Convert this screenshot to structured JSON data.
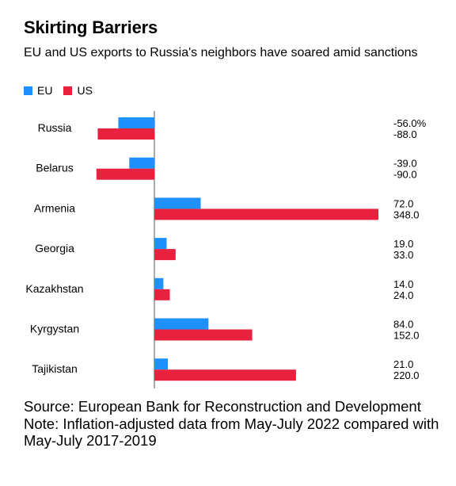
{
  "title": "Skirting Barriers",
  "subtitle": "EU and US exports to Russia's neighbors have soared amid sanctions",
  "source": "Source: European Bank for Reconstruction and Development",
  "note": "Note: Inflation-adjusted data from May-July 2022 compared with May-July 2017-2019",
  "colors": {
    "eu": "#1e90ff",
    "us": "#e8213e"
  },
  "chart_data": {
    "type": "bar",
    "orientation": "horizontal",
    "categories": [
      "Russia",
      "Belarus",
      "Armenia",
      "Georgia",
      "Kazakhstan",
      "Kyrgystan",
      "Tajikistan"
    ],
    "series": [
      {
        "name": "EU",
        "values": [
          -56.0,
          -39.0,
          72.0,
          19.0,
          14.0,
          84.0,
          21.0
        ],
        "labels": [
          "-56.0%",
          "-39.0",
          "72.0",
          "19.0",
          "14.0",
          "84.0",
          "21.0"
        ]
      },
      {
        "name": "US",
        "values": [
          -88.0,
          -90.0,
          348.0,
          33.0,
          24.0,
          152.0,
          220.0
        ],
        "labels": [
          "-88.0",
          "-90.0",
          "348.0",
          "33.0",
          "24.0",
          "152.0",
          "220.0"
        ]
      }
    ],
    "xlim": [
      -90,
      348
    ],
    "legend": "top-left",
    "grid": false
  }
}
